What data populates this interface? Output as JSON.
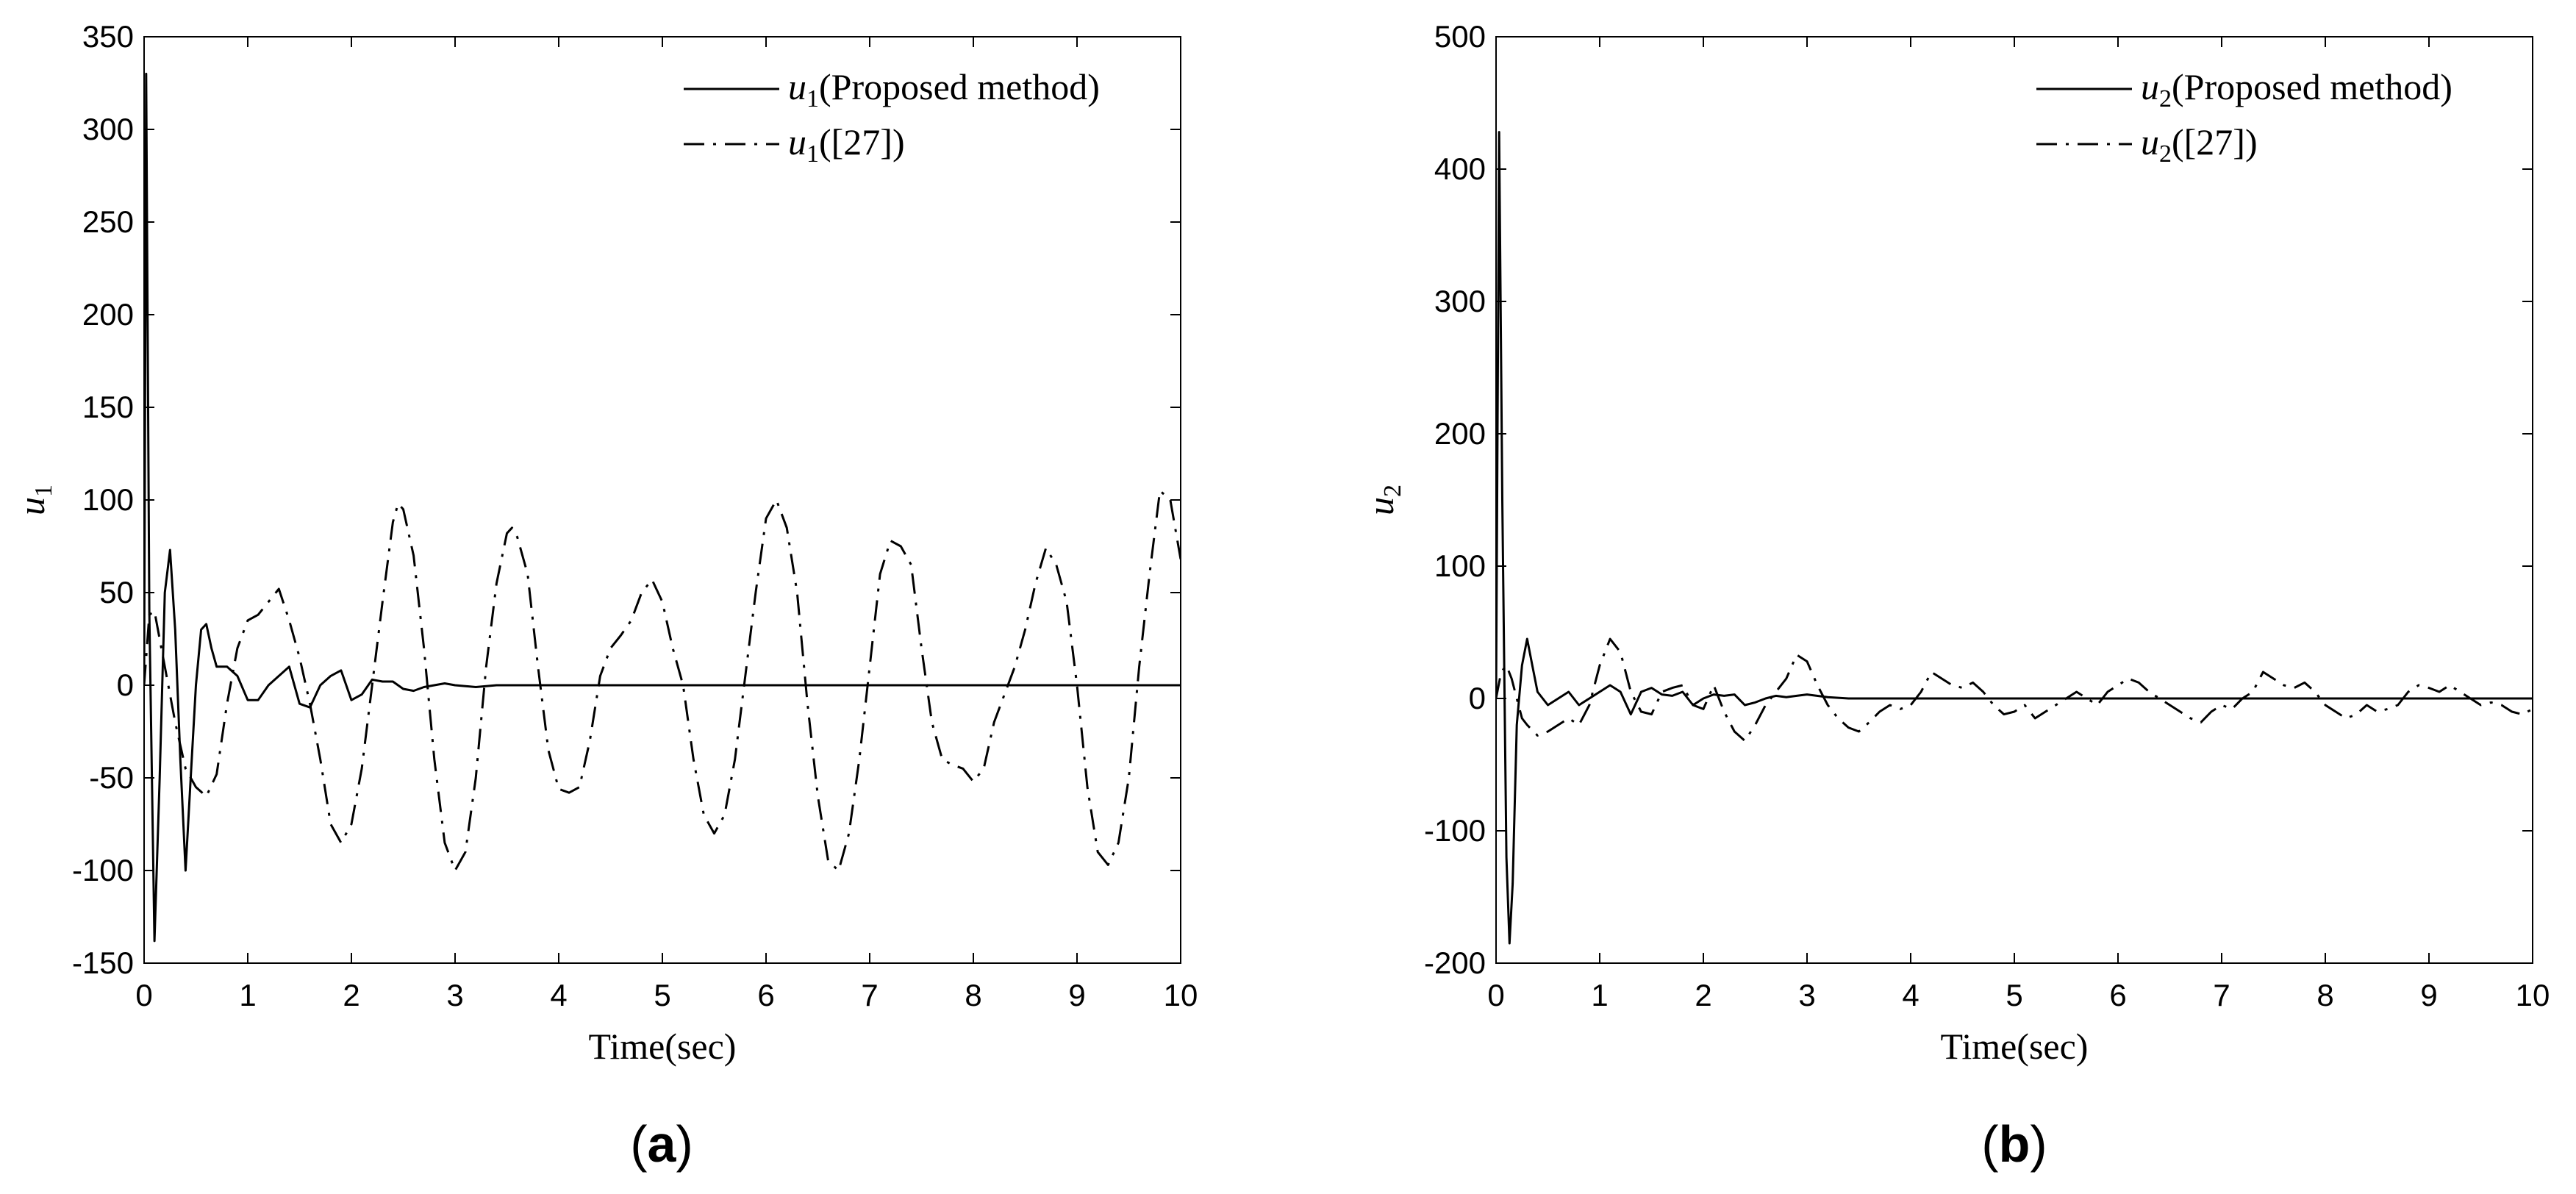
{
  "chart_data": [
    {
      "type": "line",
      "panel_label": "(a)",
      "xlabel": "Time(sec)",
      "ylabel": "u1",
      "xlim": [
        0,
        10
      ],
      "ylim": [
        -150,
        350
      ],
      "xticks": [
        "0",
        "1",
        "2",
        "3",
        "4",
        "5",
        "6",
        "7",
        "8",
        "9",
        "10"
      ],
      "yticks": [
        "-150",
        "-100",
        "-50",
        "0",
        "50",
        "100",
        "150",
        "200",
        "250",
        "300",
        "350"
      ],
      "legend_position": "top-right",
      "series": [
        {
          "name": "u1(Proposed method)",
          "legend_sym": "u",
          "legend_sub": "1",
          "legend_rest": "(Proposed method)",
          "style": "solid",
          "color": "#000000",
          "x": [
            0,
            0.02,
            0.05,
            0.1,
            0.15,
            0.2,
            0.25,
            0.3,
            0.35,
            0.4,
            0.45,
            0.5,
            0.55,
            0.6,
            0.65,
            0.7,
            0.8,
            0.9,
            1.0,
            1.1,
            1.2,
            1.3,
            1.4,
            1.5,
            1.6,
            1.7,
            1.8,
            1.9,
            2.0,
            2.1,
            2.2,
            2.3,
            2.4,
            2.5,
            2.6,
            2.7,
            2.8,
            2.9,
            3.0,
            3.2,
            3.4,
            3.6,
            3.8,
            4.0,
            4.5,
            5,
            6,
            7,
            8,
            9,
            10
          ],
          "y": [
            0,
            330,
            40,
            -138,
            -50,
            50,
            73,
            30,
            -40,
            -100,
            -50,
            0,
            30,
            33,
            20,
            10,
            10,
            5,
            -8,
            -8,
            0,
            5,
            10,
            -10,
            -12,
            0,
            5,
            8,
            -8,
            -5,
            3,
            2,
            2,
            -2,
            -3,
            -1,
            0,
            1,
            0,
            -1,
            0,
            0,
            0,
            0,
            0,
            0,
            0,
            0,
            0,
            0,
            0
          ]
        },
        {
          "name": "u1([27])",
          "legend_sym": "u",
          "legend_sub": "1",
          "legend_rest": "([27])",
          "style": "dashdot",
          "color": "#000000",
          "x": [
            0,
            0.05,
            0.1,
            0.2,
            0.3,
            0.4,
            0.5,
            0.6,
            0.7,
            0.8,
            0.9,
            1.0,
            1.1,
            1.2,
            1.3,
            1.4,
            1.5,
            1.6,
            1.7,
            1.8,
            1.9,
            2.0,
            2.1,
            2.2,
            2.3,
            2.4,
            2.45,
            2.5,
            2.6,
            2.7,
            2.8,
            2.9,
            3.0,
            3.1,
            3.2,
            3.3,
            3.4,
            3.5,
            3.55,
            3.6,
            3.7,
            3.8,
            3.9,
            4.0,
            4.1,
            4.2,
            4.3,
            4.4,
            4.5,
            4.6,
            4.7,
            4.8,
            4.9,
            5.0,
            5.1,
            5.2,
            5.3,
            5.4,
            5.5,
            5.6,
            5.7,
            5.8,
            5.9,
            6.0,
            6.1,
            6.2,
            6.3,
            6.4,
            6.5,
            6.6,
            6.7,
            6.8,
            6.9,
            7.0,
            7.1,
            7.2,
            7.3,
            7.4,
            7.5,
            7.6,
            7.7,
            7.8,
            7.9,
            8.0,
            8.1,
            8.2,
            8.3,
            8.4,
            8.5,
            8.6,
            8.7,
            8.8,
            8.9,
            9.0,
            9.1,
            9.2,
            9.3,
            9.4,
            9.5,
            9.6,
            9.7,
            9.8,
            9.9,
            10.0
          ],
          "y": [
            0,
            38,
            40,
            10,
            -20,
            -45,
            -55,
            -60,
            -48,
            -10,
            20,
            35,
            38,
            45,
            52,
            35,
            15,
            -10,
            -40,
            -75,
            -85,
            -75,
            -45,
            0,
            45,
            88,
            98,
            95,
            70,
            20,
            -40,
            -85,
            -100,
            -90,
            -50,
            10,
            55,
            82,
            85,
            80,
            60,
            10,
            -35,
            -56,
            -58,
            -55,
            -30,
            5,
            20,
            27,
            35,
            50,
            57,
            45,
            20,
            0,
            -40,
            -70,
            -80,
            -70,
            -40,
            5,
            50,
            90,
            100,
            85,
            50,
            -10,
            -60,
            -95,
            -100,
            -80,
            -40,
            10,
            60,
            78,
            75,
            65,
            20,
            -20,
            -40,
            -43,
            -45,
            -52,
            -45,
            -20,
            -5,
            10,
            30,
            55,
            74,
            65,
            45,
            0,
            -55,
            -90,
            -97,
            -85,
            -50,
            10,
            60,
            105,
            100,
            68
          ]
        }
      ]
    },
    {
      "type": "line",
      "panel_label": "(b)",
      "xlabel": "Time(sec)",
      "ylabel": "u2",
      "xlim": [
        0,
        10
      ],
      "ylim": [
        -200,
        500
      ],
      "xticks": [
        "0",
        "1",
        "2",
        "3",
        "4",
        "5",
        "6",
        "7",
        "8",
        "9",
        "10"
      ],
      "yticks": [
        "-200",
        "-100",
        "0",
        "100",
        "200",
        "300",
        "400",
        "500"
      ],
      "legend_position": "top-right",
      "series": [
        {
          "name": "u2(Proposed method)",
          "legend_sym": "u",
          "legend_sub": "2",
          "legend_rest": "(Proposed method)",
          "style": "solid",
          "color": "#000000",
          "x": [
            0,
            0.03,
            0.06,
            0.1,
            0.13,
            0.16,
            0.2,
            0.25,
            0.3,
            0.35,
            0.4,
            0.5,
            0.6,
            0.7,
            0.8,
            0.9,
            1.0,
            1.1,
            1.2,
            1.3,
            1.4,
            1.5,
            1.6,
            1.7,
            1.8,
            1.9,
            2.0,
            2.1,
            2.2,
            2.3,
            2.4,
            2.5,
            2.6,
            2.7,
            2.8,
            2.9,
            3.0,
            3.2,
            3.4,
            3.6,
            3.8,
            4.0,
            4.5,
            5,
            6,
            7,
            8,
            9,
            10
          ],
          "y": [
            0,
            428,
            150,
            -120,
            -185,
            -140,
            -20,
            25,
            45,
            25,
            5,
            -5,
            0,
            5,
            -5,
            0,
            5,
            10,
            5,
            -12,
            5,
            8,
            3,
            2,
            5,
            -5,
            0,
            3,
            2,
            3,
            -5,
            -3,
            0,
            2,
            1,
            2,
            3,
            1,
            0,
            0,
            0,
            0,
            0,
            0,
            0,
            0,
            0,
            0,
            0
          ]
        },
        {
          "name": "u2([27])",
          "legend_sym": "u",
          "legend_sub": "2",
          "legend_rest": "([27])",
          "style": "dashdot",
          "color": "#000000",
          "x": [
            0,
            0.05,
            0.1,
            0.15,
            0.2,
            0.25,
            0.3,
            0.4,
            0.5,
            0.6,
            0.7,
            0.8,
            0.9,
            1.0,
            1.1,
            1.2,
            1.3,
            1.4,
            1.5,
            1.6,
            1.7,
            1.8,
            1.9,
            2.0,
            2.1,
            2.2,
            2.3,
            2.4,
            2.5,
            2.6,
            2.7,
            2.8,
            2.9,
            3.0,
            3.1,
            3.2,
            3.3,
            3.4,
            3.5,
            3.6,
            3.7,
            3.8,
            3.9,
            4.0,
            4.1,
            4.2,
            4.3,
            4.4,
            4.5,
            4.6,
            4.7,
            4.8,
            4.9,
            5.0,
            5.1,
            5.2,
            5.3,
            5.4,
            5.5,
            5.6,
            5.7,
            5.8,
            5.9,
            6.0,
            6.1,
            6.2,
            6.3,
            6.4,
            6.5,
            6.6,
            6.7,
            6.8,
            6.9,
            7.0,
            7.1,
            7.2,
            7.3,
            7.4,
            7.5,
            7.6,
            7.7,
            7.8,
            7.9,
            8.0,
            8.1,
            8.2,
            8.3,
            8.4,
            8.5,
            8.6,
            8.7,
            8.8,
            8.9,
            9.0,
            9.1,
            9.2,
            9.3,
            9.4,
            9.5,
            9.6,
            9.7,
            9.8,
            9.9,
            10.0
          ],
          "y": [
            0,
            20,
            25,
            15,
            0,
            -15,
            -20,
            -28,
            -25,
            -20,
            -15,
            -20,
            -5,
            25,
            45,
            35,
            5,
            -10,
            -12,
            5,
            8,
            10,
            -5,
            -8,
            10,
            -10,
            -25,
            -32,
            -20,
            -5,
            5,
            15,
            33,
            28,
            10,
            -5,
            -15,
            -22,
            -25,
            -18,
            -10,
            -5,
            -8,
            -5,
            5,
            20,
            15,
            10,
            8,
            12,
            5,
            -5,
            -12,
            -10,
            -5,
            -15,
            -10,
            -5,
            0,
            5,
            0,
            -5,
            5,
            10,
            15,
            12,
            5,
            0,
            -5,
            -10,
            -15,
            -18,
            -10,
            -5,
            -8,
            0,
            5,
            20,
            15,
            10,
            8,
            12,
            5,
            -5,
            -10,
            -15,
            -12,
            -5,
            -10,
            -8,
            -5,
            5,
            10,
            8,
            5,
            10,
            5,
            0,
            -5,
            -3,
            -5,
            -10,
            -12,
            -8
          ]
        }
      ]
    }
  ]
}
